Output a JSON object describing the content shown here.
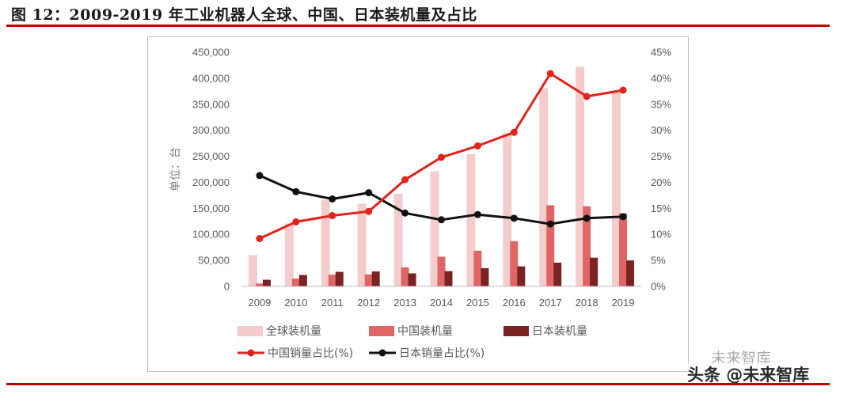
{
  "figure": {
    "title": "图 12：2009-2019 年工业机器人全球、中国、日本装机量及占比"
  },
  "watermark": {
    "line1": "未来智库",
    "line2": "头条 @未来智库"
  },
  "colors": {
    "rule": "#c00000",
    "global_bar": "#f4cccc",
    "china_bar": "#e06666",
    "japan_bar": "#7b2323",
    "china_line": "#e0241c",
    "japan_line": "#111111"
  },
  "chart_data": {
    "type": "bar",
    "categories": [
      "2009",
      "2010",
      "2011",
      "2012",
      "2013",
      "2014",
      "2015",
      "2016",
      "2017",
      "2018",
      "2019"
    ],
    "ylabel": "单位：台",
    "ylim": [
      0,
      450000
    ],
    "y_ticks": [
      "0",
      "50,000",
      "100,000",
      "150,000",
      "200,000",
      "250,000",
      "300,000",
      "350,000",
      "400,000",
      "450,000"
    ],
    "y2lim": [
      0,
      0.45
    ],
    "y2_ticks": [
      "0%",
      "5%",
      "10%",
      "15%",
      "20%",
      "25%",
      "30%",
      "35%",
      "40%",
      "45%"
    ],
    "series": [
      {
        "name": "全球装机量",
        "kind": "bar",
        "values": [
          60000,
          121000,
          166000,
          159000,
          178000,
          221000,
          254000,
          294000,
          381000,
          422000,
          373000
        ]
      },
      {
        "name": "中国装机量",
        "kind": "bar",
        "values": [
          5500,
          15000,
          22600,
          23000,
          36600,
          57100,
          68600,
          87000,
          156000,
          154000,
          140500
        ]
      },
      {
        "name": "日本装机量",
        "kind": "bar",
        "values": [
          12800,
          21900,
          28000,
          28700,
          25100,
          29300,
          35000,
          38600,
          45600,
          55200,
          49900
        ]
      },
      {
        "name": "中国销量占比(%)",
        "kind": "line",
        "axis": "right",
        "values": [
          0.092,
          0.124,
          0.136,
          0.144,
          0.205,
          0.248,
          0.27,
          0.296,
          0.409,
          0.365,
          0.377
        ]
      },
      {
        "name": "日本销量占比(%)",
        "kind": "line",
        "axis": "right",
        "values": [
          0.213,
          0.182,
          0.168,
          0.18,
          0.141,
          0.128,
          0.138,
          0.131,
          0.12,
          0.131,
          0.134
        ]
      }
    ]
  }
}
